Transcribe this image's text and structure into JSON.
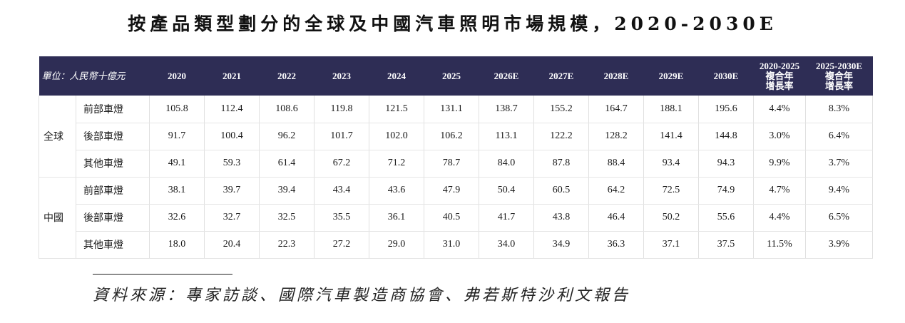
{
  "title": "按產品類型劃分的全球及中國汽車照明市場規模，2020-2030E",
  "table": {
    "unit_label": "單位：人民幣十億元",
    "years": [
      "2020",
      "2021",
      "2022",
      "2023",
      "2024",
      "2025",
      "2026E",
      "2027E",
      "2028E",
      "2029E",
      "2030E"
    ],
    "cagr_headers": [
      {
        "period": "2020-2025",
        "line1": "複合年",
        "line2": "增長率"
      },
      {
        "period": "2025-2030E",
        "line1": "複合年",
        "line2": "增長率"
      }
    ],
    "groups": [
      {
        "region": "全球",
        "rows": [
          {
            "category": "前部車燈",
            "values": [
              "105.8",
              "112.4",
              "108.6",
              "119.8",
              "121.5",
              "131.1",
              "138.7",
              "155.2",
              "164.7",
              "188.1",
              "195.6",
              "4.4%",
              "8.3%"
            ]
          },
          {
            "category": "後部車燈",
            "values": [
              "91.7",
              "100.4",
              "96.2",
              "101.7",
              "102.0",
              "106.2",
              "113.1",
              "122.2",
              "128.2",
              "141.4",
              "144.8",
              "3.0%",
              "6.4%"
            ]
          },
          {
            "category": "其他車燈",
            "values": [
              "49.1",
              "59.3",
              "61.4",
              "67.2",
              "71.2",
              "78.7",
              "84.0",
              "87.8",
              "88.4",
              "93.4",
              "94.3",
              "9.9%",
              "3.7%"
            ]
          }
        ]
      },
      {
        "region": "中國",
        "rows": [
          {
            "category": "前部車燈",
            "values": [
              "38.1",
              "39.7",
              "39.4",
              "43.4",
              "43.6",
              "47.9",
              "50.4",
              "60.5",
              "64.2",
              "72.5",
              "74.9",
              "4.7%",
              "9.4%"
            ]
          },
          {
            "category": "後部車燈",
            "values": [
              "32.6",
              "32.7",
              "32.5",
              "35.5",
              "36.1",
              "40.5",
              "41.7",
              "43.8",
              "46.4",
              "50.2",
              "55.6",
              "4.4%",
              "6.5%"
            ]
          },
          {
            "category": "其他車燈",
            "values": [
              "18.0",
              "20.4",
              "22.3",
              "27.2",
              "29.0",
              "31.0",
              "34.0",
              "34.9",
              "36.3",
              "37.1",
              "37.5",
              "11.5%",
              "3.9%"
            ]
          }
        ]
      }
    ]
  },
  "source": "資料來源：專家訪談、國際汽車製造商協會、弗若斯特沙利文報告",
  "colors": {
    "header_bg": "#2e2d55",
    "header_text": "#ffffff"
  }
}
